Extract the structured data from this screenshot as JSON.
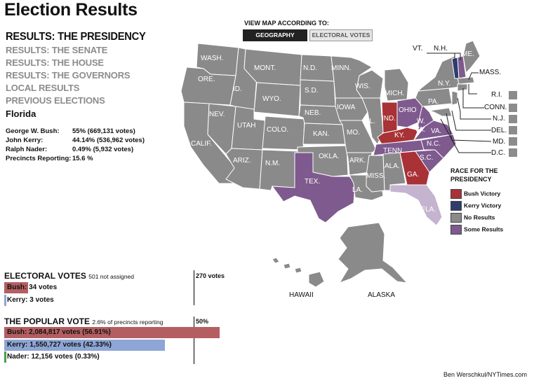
{
  "title": "Election Results",
  "nav": {
    "heading": "RESULTS: THE PRESIDENCY",
    "links": [
      "RESULTS: THE SENATE",
      "RESULTS: THE HOUSE",
      "RESULTS: THE GOVERNORS",
      "LOCAL RESULTS",
      "PREVIOUS ELECTIONS"
    ]
  },
  "state": {
    "name": "Florida",
    "rows": [
      {
        "label": "George W. Bush:",
        "value": "55% (669,131 votes)"
      },
      {
        "label": "John Kerry:",
        "value": "44.14% (536,962 votes)"
      },
      {
        "label": "Ralph Nader:",
        "value": "0.49% (5,932 votes)"
      },
      {
        "label": "Precincts Reporting:",
        "value": "15.6 %"
      }
    ]
  },
  "view": {
    "label": "VIEW MAP ACCORDING TO:",
    "geography": "GEOGRAPHY",
    "electoral": "ELECTORAL VOTES"
  },
  "colors": {
    "bush": "#a83236",
    "kerry": "#2f3c6e",
    "none": "#8a8a8a",
    "some": "#7e5a8e",
    "bush_bar": "#b45e62",
    "kerry_bar": "#8ea6d6",
    "nader_bar": "#4aa04a"
  },
  "map_labels": {
    "wash": "WASH.",
    "ore": "ORE.",
    "calif": "CALIF.",
    "nev": "NEV.",
    "id": "ID.",
    "mont": "MONT.",
    "wyo": "WYO.",
    "utah": "UTAH",
    "ariz": "ARIZ.",
    "colo": "COLO.",
    "nm": "N.M.",
    "nd": "N.D.",
    "sd": "S.D.",
    "neb": "NEB.",
    "kan": "KAN.",
    "okla": "OKLA.",
    "tex": "TEX.",
    "minn": "MINN.",
    "iowa": "IOWA",
    "mo": "MO.",
    "ark": "ARK.",
    "la": "LA.",
    "wis": "WIS.",
    "ill": "ILL.",
    "mich": "MICH.",
    "ind": "IND.",
    "ohio": "OHIO",
    "ky": "KY.",
    "tenn": "TENN.",
    "miss": "MISS.",
    "ala": "ALA.",
    "ga": "GA.",
    "fla": "FLA.",
    "sc": "S.C.",
    "nc": "N.C.",
    "va": "VA.",
    "wva": "W.\nVA.",
    "pa": "PA.",
    "ny": "N.Y.",
    "me": "ME.",
    "hawaii": "HAWAII",
    "alaska": "ALASKA"
  },
  "northeast": {
    "vt": "VT.",
    "nh": "N.H.",
    "mass": "MASS.",
    "ri": "R.I.",
    "conn": "CONN.",
    "nj": "N.J.",
    "del": "DEL.",
    "md": "MD.",
    "dc": "D.C."
  },
  "legend": {
    "title": "RACE FOR THE PRESIDENCY",
    "items": [
      {
        "label": "Bush Victory",
        "color": "#a83236"
      },
      {
        "label": "Kerry Victory",
        "color": "#2f3c6e"
      },
      {
        "label": "No Results",
        "color": "#8a8a8a"
      },
      {
        "label": "Some Results",
        "color": "#7e5a8e"
      }
    ]
  },
  "electoral": {
    "heading": "ELECTORAL VOTES",
    "note": "501 not assigned",
    "marker": "270 votes",
    "rows": [
      {
        "text": "Bush: 34 votes",
        "fraction": 0.0632
      },
      {
        "text": "Kerry: 3 votes",
        "fraction": 0.0056
      }
    ]
  },
  "popular": {
    "heading": "THE POPULAR VOTE",
    "note": "2.6% of precincts reporting",
    "marker": "50%",
    "rows": [
      {
        "text": "Bush: 2,084,817 votes (56.91%)",
        "fraction": 0.5691
      },
      {
        "text": "Kerry: 1,550,727 votes (42.33%)",
        "fraction": 0.4233
      },
      {
        "text": "Nader: 12,156 votes (0.33%)",
        "fraction": 0.0033
      }
    ]
  },
  "credit": "Ben Werschkul/NYTimes.com"
}
